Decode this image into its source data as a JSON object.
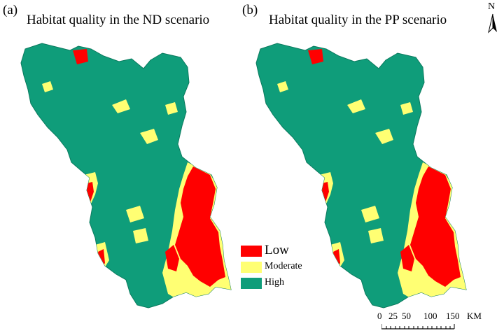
{
  "panels": [
    {
      "letter": "(a)",
      "title": "Habitat quality in the ND scenario"
    },
    {
      "letter": "(b)",
      "title": "Habitat quality in the PP scenario"
    }
  ],
  "legend": {
    "items": [
      {
        "label": "Low",
        "color": "#ff0000"
      },
      {
        "label": "Moderate",
        "color": "#ffff73"
      },
      {
        "label": "High",
        "color": "#0f9d7a"
      }
    ]
  },
  "north_arrow": {
    "label": "N"
  },
  "scale_bar": {
    "ticks": [
      "0",
      "25",
      "50",
      "100",
      "150"
    ],
    "unit": "KM"
  },
  "colors": {
    "high": "#0f9d7a",
    "moderate": "#ffff73",
    "low": "#ff0000"
  }
}
